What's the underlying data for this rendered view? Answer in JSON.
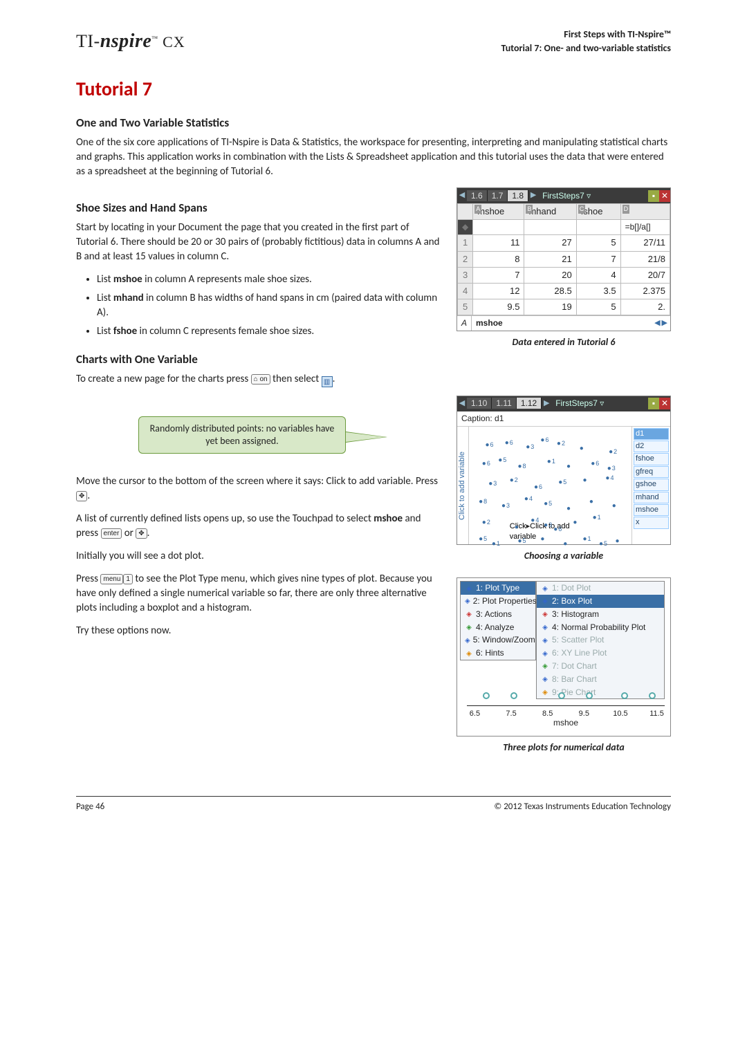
{
  "header": {
    "logo_prefix": "TI-",
    "logo_main": "nspire",
    "logo_suffix": " CX",
    "right1": "First Steps with TI-Nspire™",
    "right2": "Tutorial 7: One- and two-variable statistics"
  },
  "title": "Tutorial 7",
  "subtitle": "One and Two Variable Statistics",
  "intro": "One of the six core applications of TI-Nspire is Data & Statistics, the workspace for presenting, interpreting and manipulating statistical charts and graphs. This application works in combination with the Lists & Spreadsheet application and this tutorial uses the data that were entered as a spreadsheet at the beginning of Tutorial 6.",
  "sectionA": {
    "title": "Shoe Sizes and Hand Spans",
    "para": "Start by locating in your Document the page that you created in the first part of Tutorial 6. There should be 20 or 30 pairs of (probably fictitious) data in columns A and B and at least 15 values in column C.",
    "bullets": [
      [
        "List ",
        "mshoe",
        " in column A represents male shoe sizes."
      ],
      [
        "List ",
        "mhand",
        " in column B has widths of hand spans in cm (paired data with column A)."
      ],
      [
        "List ",
        "fshoe",
        " in column C represents female shoe sizes."
      ]
    ]
  },
  "sectionB": {
    "title": "Charts with One Variable",
    "line1a": "To create a new page for the charts press ",
    "line1b": " then select ",
    "line1c": ".",
    "callout": "Randomly distributed points: no variables have yet been assigned.",
    "para2": "Move the cursor to the bottom of the screen where it says: Click to add variable. Press ",
    "para3a": "A list of currently defined lists opens up, so use the Touchpad to select ",
    "para3bold": "mshoe",
    "para3b": " and press ",
    "para3c": " or ",
    "para4": "Initially you will see a dot plot.",
    "para5a": "Press ",
    "para5b": " to see the Plot Type menu, which gives nine types of plot. Because you have only defined a single numerical variable so far, there are only three alternative plots including a boxplot and a histogram.",
    "para6": "Try these options now."
  },
  "keys": {
    "ctrl_on": "⌂ on",
    "click": "✥",
    "enter": "enter",
    "menu": "menu",
    "one": "1"
  },
  "screenshot1": {
    "tabs": [
      "1.6",
      "1.7",
      "1.8"
    ],
    "active": 2,
    "doc": "FirstSteps7 ▿",
    "columns": [
      "mshoe",
      "mhand",
      "fshoe",
      ""
    ],
    "colLetters": [
      "A",
      "B",
      "C",
      "D"
    ],
    "formulaRow": [
      "",
      "",
      "",
      "=b[]/a[]"
    ],
    "rows": [
      [
        "11",
        "27",
        "5",
        "27/11"
      ],
      [
        "8",
        "21",
        "7",
        "21/8"
      ],
      [
        "7",
        "20",
        "4",
        "20/7"
      ],
      [
        "12",
        "28.5",
        "3.5",
        "2.375"
      ],
      [
        "9.5",
        "19",
        "5",
        "2."
      ]
    ],
    "footerCell": "A",
    "footerText": "mshoe",
    "caption": "Data entered in Tutorial 6"
  },
  "screenshot2": {
    "tabs": [
      "1.10",
      "1.11",
      "1.12"
    ],
    "active": 2,
    "doc": "FirstSteps7 ▿",
    "captionbar": "Caption: d1",
    "ylabel": "Click to add variable",
    "bottom": "Click to add variable",
    "legend": [
      "d1",
      "d2",
      "fshoe",
      "gfreq",
      "gshoe",
      "mhand",
      "mshoe",
      "x"
    ],
    "legend_hl": 0,
    "points": [
      {
        "x": 10,
        "y": 12,
        "l": "6"
      },
      {
        "x": 22,
        "y": 10,
        "l": "6"
      },
      {
        "x": 35,
        "y": 14,
        "l": "3"
      },
      {
        "x": 44,
        "y": 8,
        "l": "6"
      },
      {
        "x": 54,
        "y": 11,
        "l": "2"
      },
      {
        "x": 68,
        "y": 15,
        "l": ""
      },
      {
        "x": 86,
        "y": 18,
        "l": "2"
      },
      {
        "x": 8,
        "y": 28,
        "l": "6"
      },
      {
        "x": 18,
        "y": 25,
        "l": "5"
      },
      {
        "x": 30,
        "y": 30,
        "l": "8"
      },
      {
        "x": 48,
        "y": 26,
        "l": "1"
      },
      {
        "x": 60,
        "y": 30,
        "l": ""
      },
      {
        "x": 75,
        "y": 28,
        "l": "6"
      },
      {
        "x": 85,
        "y": 32,
        "l": "3"
      },
      {
        "x": 12,
        "y": 45,
        "l": "3"
      },
      {
        "x": 25,
        "y": 42,
        "l": "2"
      },
      {
        "x": 40,
        "y": 48,
        "l": "6"
      },
      {
        "x": 55,
        "y": 44,
        "l": "5"
      },
      {
        "x": 70,
        "y": 42,
        "l": ""
      },
      {
        "x": 84,
        "y": 40,
        "l": "4"
      },
      {
        "x": 6,
        "y": 60,
        "l": "8"
      },
      {
        "x": 20,
        "y": 64,
        "l": "3"
      },
      {
        "x": 34,
        "y": 58,
        "l": "4"
      },
      {
        "x": 46,
        "y": 62,
        "l": "5"
      },
      {
        "x": 60,
        "y": 66,
        "l": ""
      },
      {
        "x": 74,
        "y": 60,
        "l": ""
      },
      {
        "x": 88,
        "y": 64,
        "l": ""
      },
      {
        "x": 8,
        "y": 78,
        "l": "2"
      },
      {
        "x": 28,
        "y": 82,
        "l": ""
      },
      {
        "x": 38,
        "y": 76,
        "l": "4"
      },
      {
        "x": 46,
        "y": 80,
        "l": "3"
      },
      {
        "x": 52,
        "y": 84,
        "l": "6"
      },
      {
        "x": 64,
        "y": 78,
        "l": ""
      },
      {
        "x": 76,
        "y": 74,
        "l": "1"
      },
      {
        "x": 6,
        "y": 92,
        "l": "5"
      },
      {
        "x": 14,
        "y": 96,
        "l": "1"
      },
      {
        "x": 30,
        "y": 94,
        "l": "5"
      },
      {
        "x": 44,
        "y": 92,
        "l": ""
      },
      {
        "x": 58,
        "y": 96,
        "l": ""
      },
      {
        "x": 70,
        "y": 92,
        "l": "1"
      },
      {
        "x": 80,
        "y": 96,
        "l": "5"
      },
      {
        "x": 90,
        "y": 94,
        "l": ""
      }
    ],
    "caption": "Choosing a variable"
  },
  "screenshot3": {
    "menuLeft": [
      {
        "t": "1: Plot Type",
        "sel": true,
        "c": "mi-blue"
      },
      {
        "t": "2: Plot Properties",
        "c": "mi-blue"
      },
      {
        "t": "3: Actions",
        "c": "mi-red"
      },
      {
        "t": "4: Analyze",
        "c": "mi-green"
      },
      {
        "t": "5: Window/Zoom",
        "c": "mi-blue"
      },
      {
        "t": "6: Hints",
        "c": "mi-orange"
      }
    ],
    "menuRight": [
      {
        "t": "1: Dot Plot",
        "dis": true,
        "c": "mi-blue"
      },
      {
        "t": "2: Box Plot",
        "sel": true,
        "c": "mi-blue"
      },
      {
        "t": "3: Histogram",
        "c": "mi-red"
      },
      {
        "t": "4: Normal Probability Plot",
        "c": "mi-blue"
      },
      {
        "t": "5: Scatter Plot",
        "dis": true,
        "c": "mi-blue"
      },
      {
        "t": "6: XY Line Plot",
        "dis": true,
        "c": "mi-blue"
      },
      {
        "t": "7: Dot Chart",
        "dis": true,
        "c": "mi-green"
      },
      {
        "t": "8: Bar Chart",
        "dis": true,
        "c": "mi-blue"
      },
      {
        "t": "9: Pie Chart",
        "dis": true,
        "c": "mi-orange"
      }
    ],
    "axisTicks": [
      "6.5",
      "7.5",
      "8.5",
      "9.5",
      "10.5",
      "11.5"
    ],
    "axisLabel": "mshoe",
    "dots": [
      8,
      22,
      46,
      60,
      78,
      92
    ],
    "caption": "Three plots for numerical data"
  },
  "footer": {
    "left": "Page  46",
    "right": "© 2012 Texas Instruments Education Technology"
  }
}
